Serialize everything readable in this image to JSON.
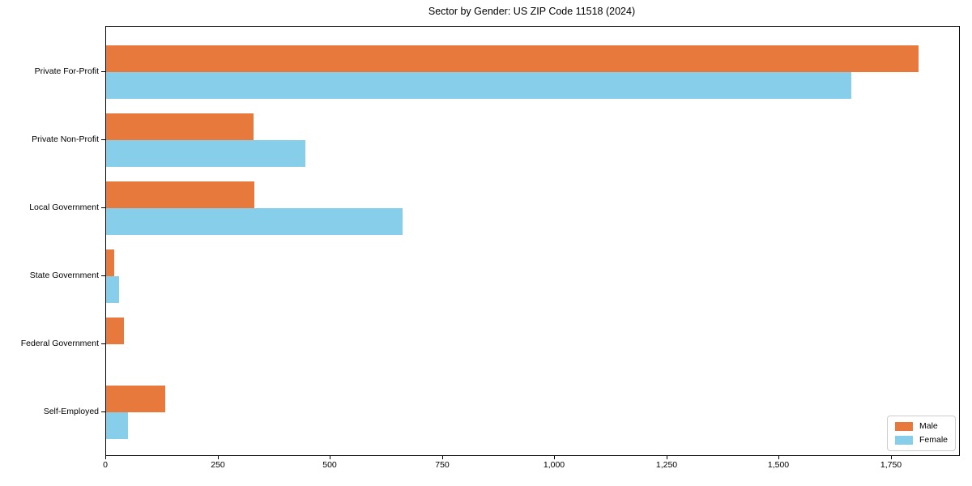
{
  "title": "Sector by Gender: US ZIP Code 11518 (2024)",
  "colors": {
    "male": "#e8793d",
    "female": "#87ceeb",
    "axis": "#000000",
    "legend_border": "#cccccc",
    "background": "#ffffff"
  },
  "legend": {
    "position": "lower right",
    "items": [
      {
        "label": "Male",
        "color": "#e8793d"
      },
      {
        "label": "Female",
        "color": "#87ceeb"
      }
    ]
  },
  "chart_data": {
    "type": "bar",
    "orientation": "horizontal",
    "title": "Sector by Gender: US ZIP Code 11518 (2024)",
    "categories": [
      "Private For-Profit",
      "Private Non-Profit",
      "Local Government",
      "State Government",
      "Federal Government",
      "Self-Employed"
    ],
    "series": [
      {
        "name": "Male",
        "color": "#e8793d",
        "values": [
          1810,
          328,
          330,
          18,
          40,
          131
        ]
      },
      {
        "name": "Female",
        "color": "#87ceeb",
        "values": [
          1660,
          444,
          660,
          29,
          0,
          48
        ]
      }
    ],
    "xlabel": "",
    "ylabel": "",
    "xlim": [
      0,
      1900
    ],
    "xticks": [
      0,
      250,
      500,
      750,
      1000,
      1250,
      1500,
      1750
    ],
    "xtick_labels": [
      "0",
      "250",
      "500",
      "750",
      "1,000",
      "1,250",
      "1,500",
      "1,750"
    ],
    "grid": false,
    "legend_position": "lower right"
  }
}
